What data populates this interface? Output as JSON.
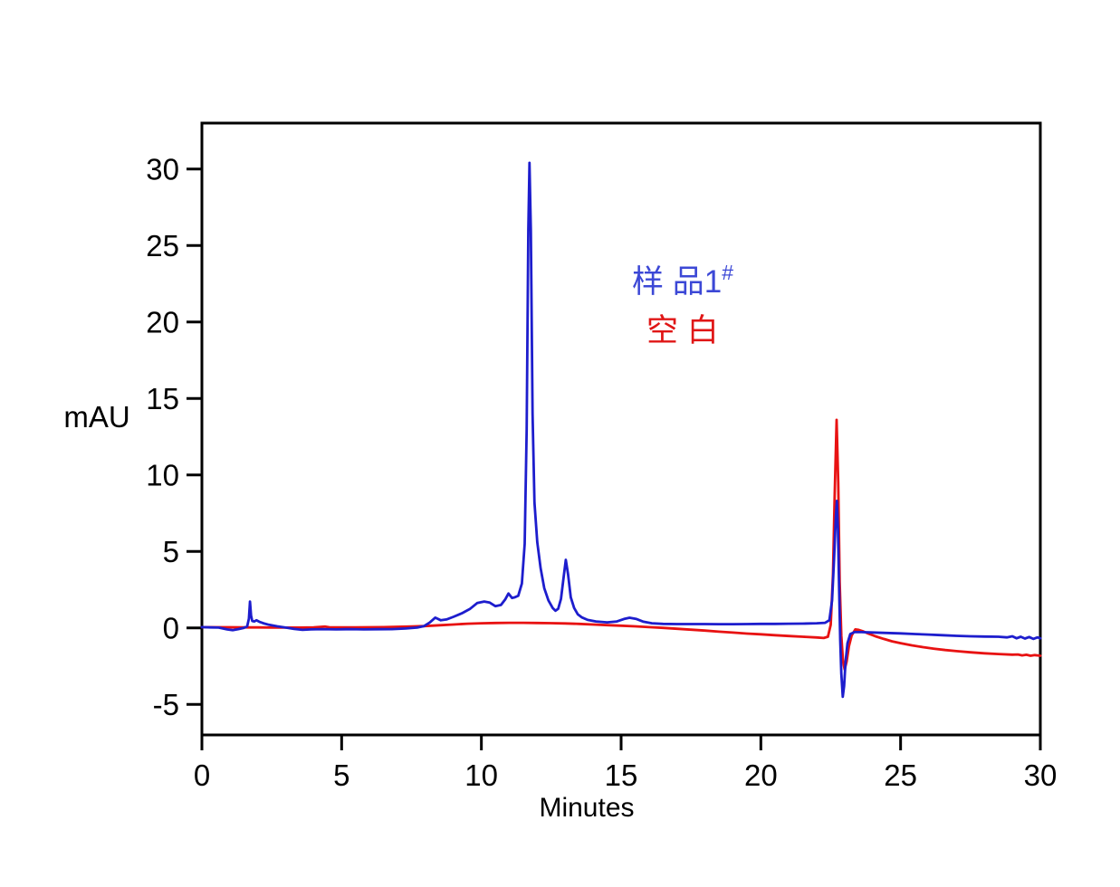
{
  "figure": {
    "background": "#ffffff",
    "axis_color": "#000000"
  },
  "chart_data": {
    "type": "line",
    "title": "",
    "xlabel": "Minutes",
    "ylabel": "mAU",
    "xlim": [
      0,
      30
    ],
    "ylim": [
      -7,
      33
    ],
    "x_ticks": [
      0,
      5,
      10,
      15,
      20,
      25,
      30
    ],
    "y_ticks": [
      -5,
      0,
      5,
      10,
      15,
      20,
      25,
      30
    ],
    "grid": false,
    "legend": {
      "position": "inside-upper-center",
      "entries": [
        {
          "id": "sample",
          "text": "样 品1",
          "superscript": "#",
          "color": "#3c48d6"
        },
        {
          "id": "blank",
          "text": "空 白",
          "superscript": "",
          "color": "#e01616"
        }
      ]
    },
    "series": [
      {
        "id": "blank",
        "name": "空 白",
        "color": "#e81212",
        "points": [
          [
            0,
            0.05
          ],
          [
            0.5,
            0.04
          ],
          [
            1.0,
            0.04
          ],
          [
            1.5,
            0.03
          ],
          [
            2.0,
            0.03
          ],
          [
            2.5,
            0.02
          ],
          [
            3.0,
            0.02
          ],
          [
            3.5,
            0.02
          ],
          [
            4.0,
            0.03
          ],
          [
            4.4,
            0.08
          ],
          [
            4.6,
            0.03
          ],
          [
            5.0,
            0.03
          ],
          [
            5.5,
            0.03
          ],
          [
            6.0,
            0.04
          ],
          [
            6.5,
            0.05
          ],
          [
            7.0,
            0.07
          ],
          [
            7.5,
            0.09
          ],
          [
            8.0,
            0.12
          ],
          [
            8.5,
            0.17
          ],
          [
            9.0,
            0.22
          ],
          [
            9.5,
            0.27
          ],
          [
            10.0,
            0.3
          ],
          [
            10.5,
            0.32
          ],
          [
            11.0,
            0.33
          ],
          [
            11.5,
            0.33
          ],
          [
            12.0,
            0.32
          ],
          [
            12.5,
            0.31
          ],
          [
            13.0,
            0.29
          ],
          [
            13.5,
            0.26
          ],
          [
            14.0,
            0.22
          ],
          [
            14.5,
            0.18
          ],
          [
            15.0,
            0.14
          ],
          [
            15.5,
            0.1
          ],
          [
            16.0,
            0.05
          ],
          [
            16.5,
            0.0
          ],
          [
            17.0,
            -0.06
          ],
          [
            17.5,
            -0.12
          ],
          [
            18.0,
            -0.18
          ],
          [
            18.5,
            -0.25
          ],
          [
            19.0,
            -0.31
          ],
          [
            19.5,
            -0.37
          ],
          [
            20.0,
            -0.42
          ],
          [
            20.5,
            -0.48
          ],
          [
            21.0,
            -0.53
          ],
          [
            21.5,
            -0.58
          ],
          [
            22.0,
            -0.63
          ],
          [
            22.25,
            -0.66
          ],
          [
            22.4,
            -0.58
          ],
          [
            22.5,
            0.2
          ],
          [
            22.58,
            3.5
          ],
          [
            22.64,
            8.5
          ],
          [
            22.71,
            13.6
          ],
          [
            22.77,
            9.5
          ],
          [
            22.82,
            3.0
          ],
          [
            22.88,
            -0.5
          ],
          [
            22.94,
            -2.2
          ],
          [
            23.0,
            -2.72
          ],
          [
            23.07,
            -2.2
          ],
          [
            23.15,
            -1.2
          ],
          [
            23.25,
            -0.5
          ],
          [
            23.38,
            -0.1
          ],
          [
            23.5,
            -0.13
          ],
          [
            23.65,
            -0.22
          ],
          [
            23.85,
            -0.38
          ],
          [
            24.1,
            -0.55
          ],
          [
            24.4,
            -0.72
          ],
          [
            24.7,
            -0.88
          ],
          [
            25.0,
            -1.0
          ],
          [
            25.4,
            -1.14
          ],
          [
            25.8,
            -1.26
          ],
          [
            26.2,
            -1.36
          ],
          [
            26.6,
            -1.45
          ],
          [
            27.0,
            -1.52
          ],
          [
            27.5,
            -1.6
          ],
          [
            28.0,
            -1.66
          ],
          [
            28.5,
            -1.71
          ],
          [
            29.0,
            -1.75
          ],
          [
            29.2,
            -1.74
          ],
          [
            29.35,
            -1.8
          ],
          [
            29.5,
            -1.76
          ],
          [
            29.65,
            -1.82
          ],
          [
            29.8,
            -1.78
          ],
          [
            30,
            -1.82
          ]
        ]
      },
      {
        "id": "sample",
        "name": "样 品1#",
        "color": "#1d1dcd",
        "points": [
          [
            0,
            0.05
          ],
          [
            0.3,
            0.03
          ],
          [
            0.6,
            0.02
          ],
          [
            0.9,
            -0.1
          ],
          [
            1.1,
            -0.15
          ],
          [
            1.3,
            -0.08
          ],
          [
            1.5,
            0.0
          ],
          [
            1.62,
            0.1
          ],
          [
            1.68,
            0.6
          ],
          [
            1.72,
            1.72
          ],
          [
            1.76,
            0.8
          ],
          [
            1.8,
            0.45
          ],
          [
            1.88,
            0.42
          ],
          [
            1.95,
            0.5
          ],
          [
            2.05,
            0.4
          ],
          [
            2.2,
            0.3
          ],
          [
            2.4,
            0.2
          ],
          [
            2.7,
            0.1
          ],
          [
            3.0,
            0.02
          ],
          [
            3.3,
            -0.07
          ],
          [
            3.6,
            -0.13
          ],
          [
            3.9,
            -0.1
          ],
          [
            4.3,
            -0.08
          ],
          [
            4.8,
            -0.1
          ],
          [
            5.3,
            -0.08
          ],
          [
            5.8,
            -0.1
          ],
          [
            6.3,
            -0.09
          ],
          [
            6.8,
            -0.08
          ],
          [
            7.3,
            -0.04
          ],
          [
            7.7,
            0.02
          ],
          [
            7.95,
            0.12
          ],
          [
            8.15,
            0.35
          ],
          [
            8.35,
            0.67
          ],
          [
            8.55,
            0.5
          ],
          [
            8.75,
            0.55
          ],
          [
            9.0,
            0.72
          ],
          [
            9.3,
            0.95
          ],
          [
            9.6,
            1.25
          ],
          [
            9.85,
            1.62
          ],
          [
            10.1,
            1.72
          ],
          [
            10.3,
            1.65
          ],
          [
            10.5,
            1.42
          ],
          [
            10.7,
            1.5
          ],
          [
            10.85,
            1.85
          ],
          [
            10.97,
            2.25
          ],
          [
            11.1,
            1.95
          ],
          [
            11.2,
            2.0
          ],
          [
            11.32,
            2.1
          ],
          [
            11.45,
            2.9
          ],
          [
            11.55,
            5.5
          ],
          [
            11.62,
            13.0
          ],
          [
            11.68,
            26.0
          ],
          [
            11.72,
            30.4
          ],
          [
            11.77,
            26.0
          ],
          [
            11.83,
            14.0
          ],
          [
            11.9,
            8.2
          ],
          [
            12.0,
            5.6
          ],
          [
            12.12,
            3.9
          ],
          [
            12.25,
            2.6
          ],
          [
            12.4,
            1.8
          ],
          [
            12.55,
            1.3
          ],
          [
            12.65,
            1.12
          ],
          [
            12.75,
            1.25
          ],
          [
            12.85,
            1.9
          ],
          [
            12.95,
            3.4
          ],
          [
            13.02,
            4.45
          ],
          [
            13.1,
            3.5
          ],
          [
            13.2,
            2.0
          ],
          [
            13.32,
            1.3
          ],
          [
            13.45,
            0.88
          ],
          [
            13.6,
            0.68
          ],
          [
            13.8,
            0.52
          ],
          [
            14.1,
            0.42
          ],
          [
            14.5,
            0.36
          ],
          [
            14.85,
            0.42
          ],
          [
            15.1,
            0.58
          ],
          [
            15.3,
            0.66
          ],
          [
            15.55,
            0.58
          ],
          [
            15.8,
            0.4
          ],
          [
            16.1,
            0.3
          ],
          [
            16.5,
            0.26
          ],
          [
            17.0,
            0.25
          ],
          [
            17.5,
            0.25
          ],
          [
            18.0,
            0.25
          ],
          [
            18.5,
            0.24
          ],
          [
            19.0,
            0.24
          ],
          [
            19.5,
            0.25
          ],
          [
            20.0,
            0.26
          ],
          [
            20.5,
            0.26
          ],
          [
            21.0,
            0.27
          ],
          [
            21.5,
            0.28
          ],
          [
            22.0,
            0.3
          ],
          [
            22.3,
            0.33
          ],
          [
            22.45,
            0.5
          ],
          [
            22.55,
            1.8
          ],
          [
            22.62,
            4.5
          ],
          [
            22.68,
            7.2
          ],
          [
            22.72,
            8.3
          ],
          [
            22.76,
            6.5
          ],
          [
            22.8,
            2.5
          ],
          [
            22.84,
            -0.8
          ],
          [
            22.88,
            -3.0
          ],
          [
            22.93,
            -4.5
          ],
          [
            22.98,
            -3.8
          ],
          [
            23.03,
            -2.2
          ],
          [
            23.1,
            -1.0
          ],
          [
            23.2,
            -0.4
          ],
          [
            23.35,
            -0.28
          ],
          [
            23.6,
            -0.28
          ],
          [
            24.0,
            -0.3
          ],
          [
            24.5,
            -0.33
          ],
          [
            25.0,
            -0.36
          ],
          [
            25.5,
            -0.4
          ],
          [
            26.0,
            -0.44
          ],
          [
            26.5,
            -0.48
          ],
          [
            27.0,
            -0.52
          ],
          [
            27.5,
            -0.55
          ],
          [
            28.0,
            -0.57
          ],
          [
            28.5,
            -0.58
          ],
          [
            28.8,
            -0.62
          ],
          [
            29.0,
            -0.55
          ],
          [
            29.15,
            -0.68
          ],
          [
            29.3,
            -0.58
          ],
          [
            29.45,
            -0.7
          ],
          [
            29.6,
            -0.6
          ],
          [
            29.75,
            -0.72
          ],
          [
            29.9,
            -0.62
          ],
          [
            30,
            -0.68
          ]
        ]
      }
    ]
  }
}
